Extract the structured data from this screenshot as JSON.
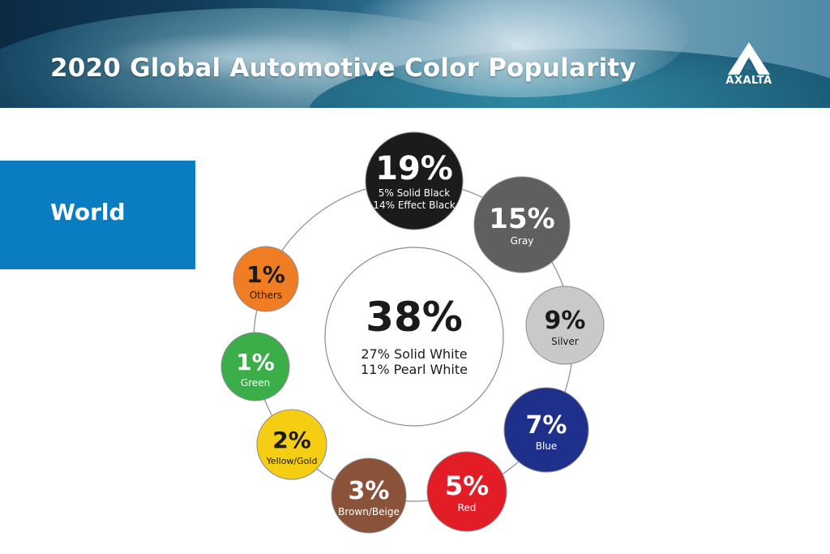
{
  "header": {
    "title": "2020 Global Automotive Color Popularity",
    "logo_text": "AXALTA"
  },
  "region": {
    "label": "World"
  },
  "chart_data": {
    "type": "pie",
    "title": "2020 Global Automotive Color Popularity",
    "center": {
      "value": "38%",
      "lines": [
        "27% Solid White",
        "11% Pearl White"
      ],
      "color": "#ffffff"
    },
    "slices": [
      {
        "value": "19%",
        "lines": [
          "5% Solid Black",
          "14% Effect Black"
        ],
        "color": "#1c1a1b",
        "text_color": "#ffffff",
        "icon": "black-circle"
      },
      {
        "value": "15%",
        "lines": [
          "Gray"
        ],
        "color": "#5e5f61",
        "text_color": "#ffffff",
        "icon": "gray-circle"
      },
      {
        "value": "9%",
        "lines": [
          "Silver"
        ],
        "color": "#c8c9cb",
        "text_color": "#1a1a1a",
        "icon": "silver-circle"
      },
      {
        "value": "7%",
        "lines": [
          "Blue"
        ],
        "color": "#1f2f8c",
        "text_color": "#ffffff",
        "icon": "blue-circle"
      },
      {
        "value": "5%",
        "lines": [
          "Red"
        ],
        "color": "#e31d26",
        "text_color": "#ffffff",
        "icon": "red-circle"
      },
      {
        "value": "3%",
        "lines": [
          "Brown/Beige"
        ],
        "color": "#8a5238",
        "text_color": "#ffffff",
        "icon": "brown-circle"
      },
      {
        "value": "2%",
        "lines": [
          "Yellow/Gold"
        ],
        "color": "#f5cd12",
        "text_color": "#1a1a1a",
        "icon": "yellow-circle"
      },
      {
        "value": "1%",
        "lines": [
          "Green"
        ],
        "color": "#3cae49",
        "text_color": "#ffffff",
        "icon": "green-circle"
      },
      {
        "value": "1%",
        "lines": [
          "Others"
        ],
        "color": "#f07c23",
        "text_color": "#1a1a1a",
        "icon": "orange-circle"
      }
    ]
  }
}
